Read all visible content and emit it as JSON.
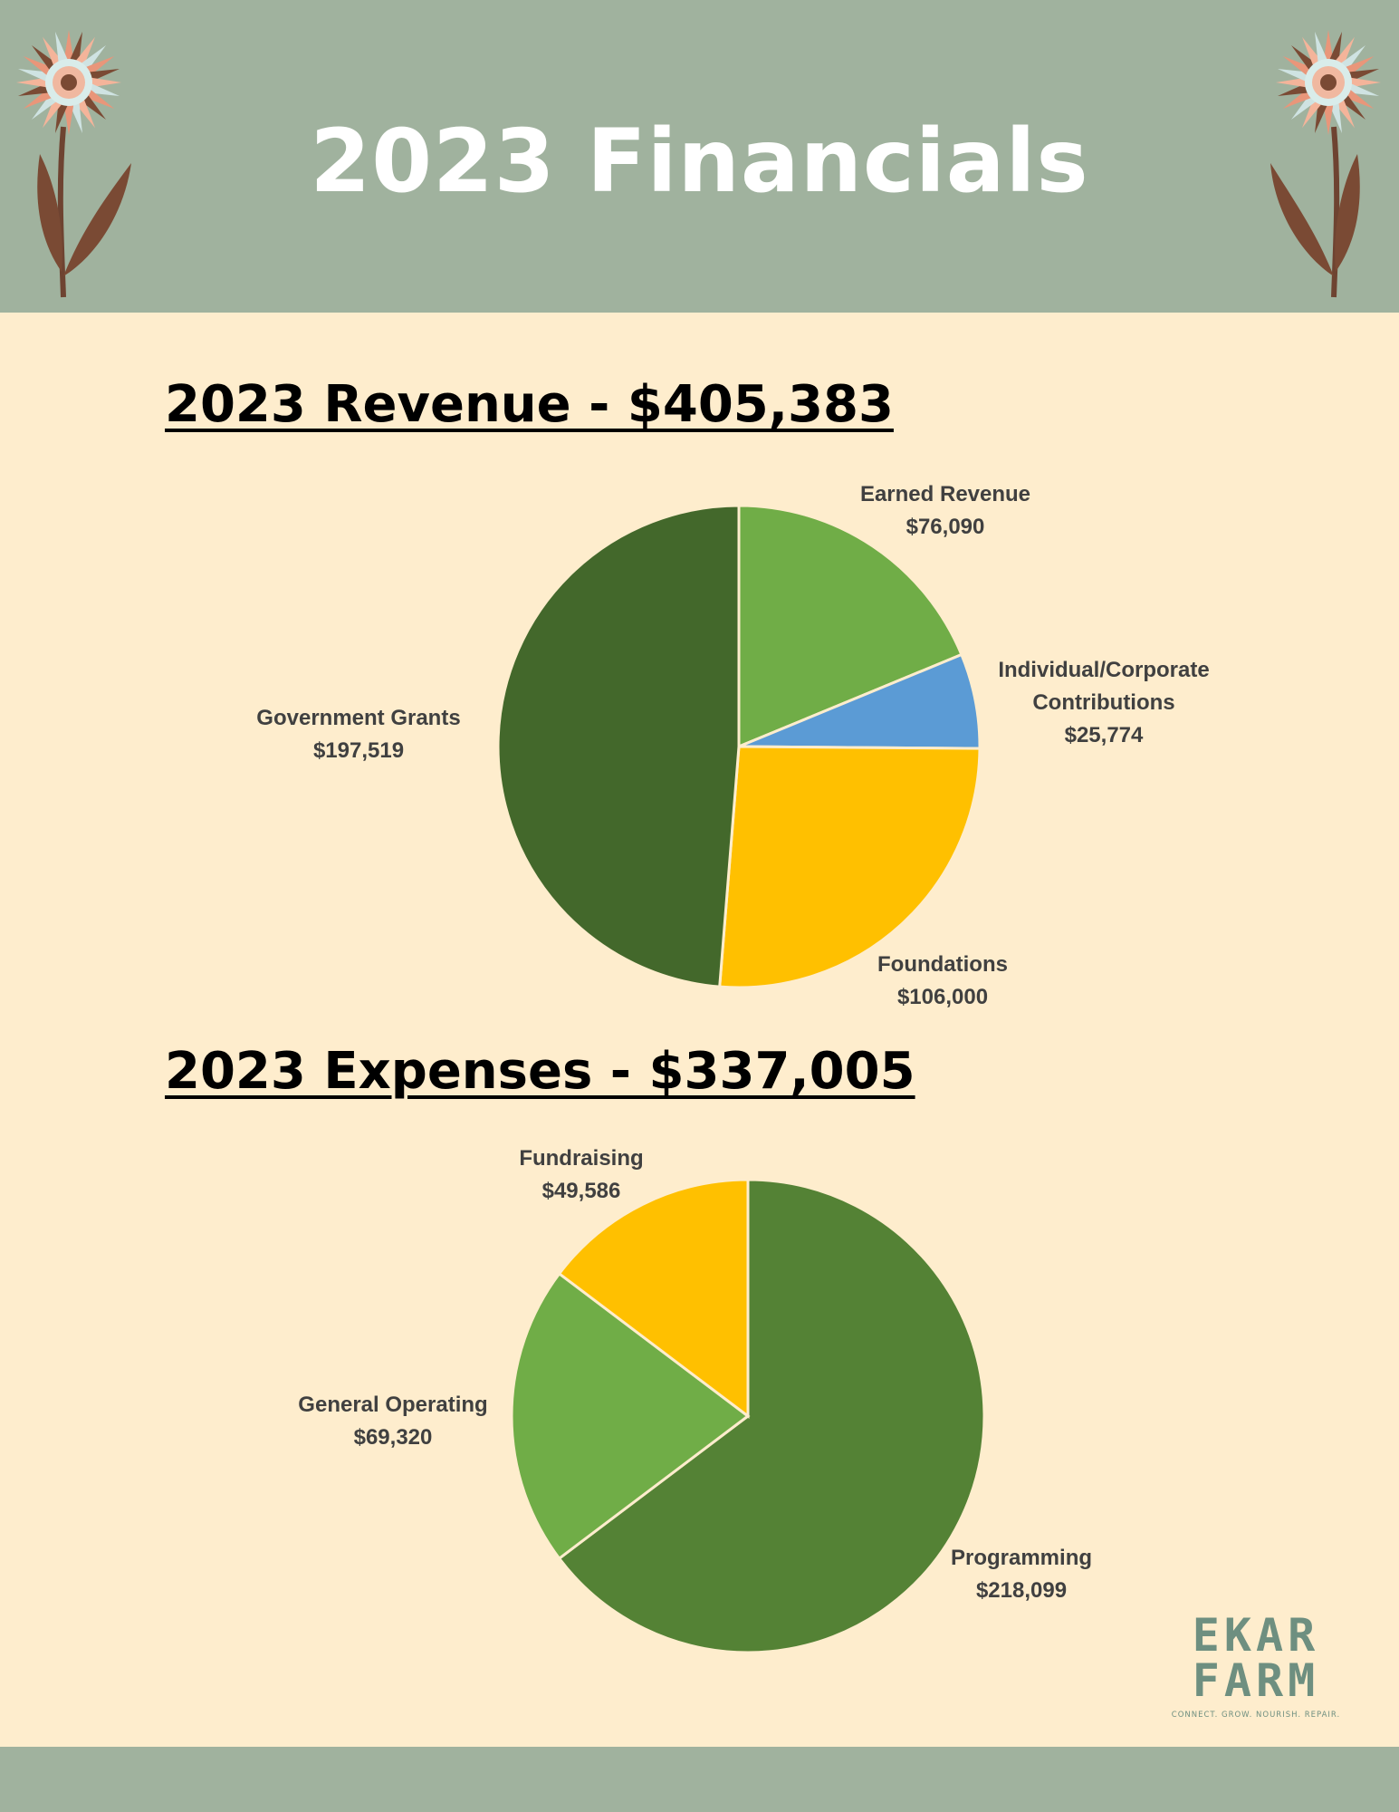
{
  "page": {
    "title": "2023 Financials",
    "colors": {
      "header": "#A0B29E",
      "background": "#FEEDCD",
      "title_text": "#FFFFFF"
    },
    "icons": [
      "flower-icon-left",
      "flower-icon-right"
    ]
  },
  "chart_data": [
    {
      "type": "pie",
      "title": "2023 Revenue - $405,383",
      "slices": [
        {
          "label": "Earned Revenue",
          "value_text": "$76,090",
          "value": 76090,
          "color": "#70AD47"
        },
        {
          "label_lines": [
            "Individual/Corporate",
            "Contributions"
          ],
          "value_text": "$25,774",
          "value": 25774,
          "color": "#5B9BD5"
        },
        {
          "label": "Foundations",
          "value_text": "$106,000",
          "value": 106000,
          "color": "#FFC000"
        },
        {
          "label": "Government Grants",
          "value_text": "$197,519",
          "value": 197519,
          "color": "#43682B"
        }
      ]
    },
    {
      "type": "pie",
      "title": "2023 Expenses - $337,005",
      "slices": [
        {
          "label": "Programming",
          "value_text": "$218,099",
          "value": 218099,
          "color": "#548235"
        },
        {
          "label": "General Operating",
          "value_text": "$69,320",
          "value": 69320,
          "color": "#70AD47"
        },
        {
          "label": "Fundraising",
          "value_text": "$49,586",
          "value": 49586,
          "color": "#FFC000"
        }
      ]
    }
  ],
  "logo": {
    "line1": "EKAR",
    "line2": "FARM",
    "tagline": "CONNECT. GROW. NOURISH. REPAIR."
  }
}
